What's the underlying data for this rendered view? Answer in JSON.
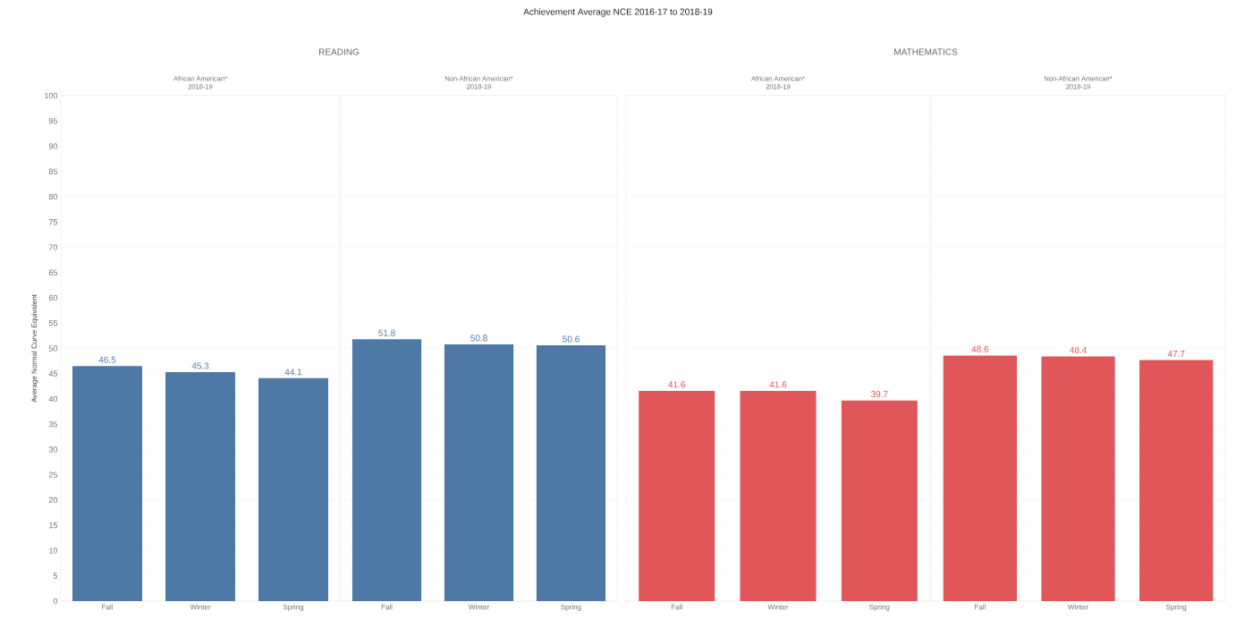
{
  "chart_data": [
    {
      "type": "bar",
      "title": "African American*",
      "subtitle": "2018-19",
      "ylabel": "Average Normal Curve Equivalent",
      "annotations": [
        "Achievement Average NCE 2016-17 to 2018-19",
        "READING"
      ],
      "categories": [
        "Fall",
        "Winter",
        "Spring"
      ],
      "values": [
        46.5,
        45.3,
        44.1
      ],
      "color": "#4e79a7",
      "ylim": [
        0,
        100
      ],
      "yticks": [
        0,
        5,
        10,
        15,
        20,
        25,
        30,
        35,
        40,
        45,
        50,
        55,
        60,
        65,
        70,
        75,
        80,
        85,
        90,
        95,
        100
      ],
      "grid": "y",
      "data_labels": true
    },
    {
      "type": "bar",
      "title": "Non-African American*",
      "subtitle": "2018-19",
      "categories": [
        "Fall",
        "Winter",
        "Spring"
      ],
      "values": [
        51.8,
        50.8,
        50.6
      ],
      "color": "#4e79a7",
      "ylim": [
        0,
        100
      ],
      "yticks": [
        0,
        5,
        10,
        15,
        20,
        25,
        30,
        35,
        40,
        45,
        50,
        55,
        60,
        65,
        70,
        75,
        80,
        85,
        90,
        95,
        100
      ],
      "grid": "y",
      "data_labels": true,
      "tick_labels": "x"
    },
    {
      "type": "bar",
      "title": "African American*",
      "subtitle": "2018-19",
      "annotations": [
        "MATHEMATICS"
      ],
      "categories": [
        "Fall",
        "Winter",
        "Spring"
      ],
      "values": [
        41.6,
        41.6,
        39.7
      ],
      "color": "#e15759",
      "ylim": [
        0,
        100
      ],
      "yticks": [
        0,
        5,
        10,
        15,
        20,
        25,
        30,
        35,
        40,
        45,
        50,
        55,
        60,
        65,
        70,
        75,
        80,
        85,
        90,
        95,
        100
      ],
      "grid": "y",
      "data_labels": true,
      "tick_labels": "x"
    },
    {
      "type": "bar",
      "title": "Non-African American*",
      "subtitle": "2018-19",
      "categories": [
        "Fall",
        "Winter",
        "Spring"
      ],
      "values": [
        48.6,
        48.4,
        47.7
      ],
      "color": "#e15759",
      "ylim": [
        0,
        100
      ],
      "yticks": [
        0,
        5,
        10,
        15,
        20,
        25,
        30,
        35,
        40,
        45,
        50,
        55,
        60,
        65,
        70,
        75,
        80,
        85,
        90,
        95,
        100
      ],
      "grid": "y",
      "data_labels": true,
      "tick_labels": "x"
    }
  ]
}
